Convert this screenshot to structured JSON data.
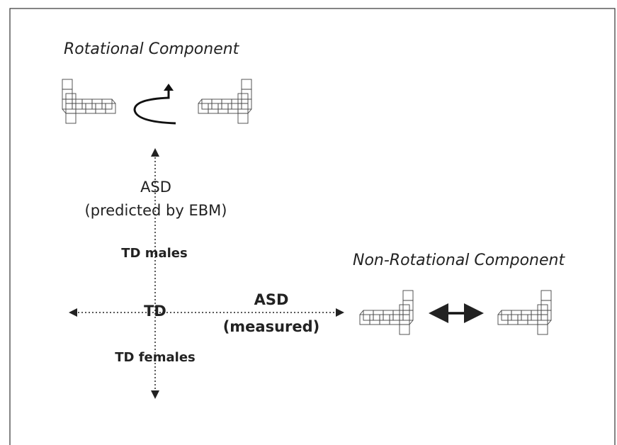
{
  "rotational_component": {
    "label": "Rotational Component"
  },
  "non_rotational_component": {
    "label": "Non-Rotational Component"
  },
  "vertical_axis": {
    "label_lines": [
      "ASD",
      "(predicted by EBM)"
    ],
    "top_group": "TD males",
    "bottom_group": "TD females"
  },
  "horizontal_axis": {
    "label_lines": [
      "ASD",
      "(measured)"
    ]
  },
  "origin": {
    "label": "TD"
  }
}
